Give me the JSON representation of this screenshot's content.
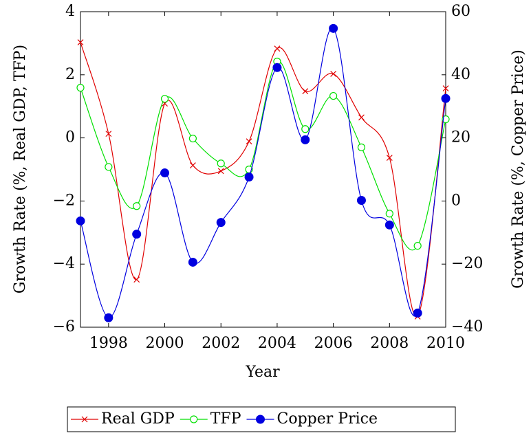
{
  "chart_data": {
    "type": "line",
    "x_label": "Year",
    "y_label": "Growth Rate (%, Real GDP, TFP)",
    "y2_label": "Growth Rate (%, Copper Price)",
    "x": [
      1997,
      1998,
      1999,
      2000,
      2001,
      2002,
      2003,
      2004,
      2005,
      2006,
      2007,
      2008,
      2009,
      2010
    ],
    "xlim": [
      1997,
      2010
    ],
    "xticks": [
      1998,
      2000,
      2002,
      2004,
      2006,
      2008,
      2010
    ],
    "ylim": [
      -6,
      4
    ],
    "yticks": [
      {
        "value": -6,
        "label": "−6"
      },
      {
        "value": -4,
        "label": "−4"
      },
      {
        "value": -2,
        "label": "−2"
      },
      0,
      2,
      4
    ],
    "y2lim": [
      -40,
      60
    ],
    "y2ticks": [
      {
        "value": -40,
        "label": "−40"
      },
      {
        "value": -20,
        "label": "−20"
      },
      0,
      20,
      40,
      60
    ],
    "legend": "bottom",
    "series": [
      {
        "name": "Real GDP",
        "color": "#e00000",
        "marker": "x",
        "values": [
          3.03,
          0.13,
          -4.49,
          1.09,
          -0.87,
          -1.05,
          -0.11,
          2.83,
          1.48,
          2.03,
          0.65,
          -0.63,
          -5.66,
          1.57
        ]
      },
      {
        "name": "TFP",
        "color": "#00e000",
        "marker": "circle",
        "values": [
          1.59,
          -0.92,
          -2.16,
          1.24,
          -0.02,
          -0.81,
          -1.0,
          2.42,
          0.28,
          1.33,
          -0.3,
          -2.4,
          -3.42,
          0.59
        ]
      },
      {
        "name": "Copper Price",
        "color": "#0000e0",
        "marker": "dot",
        "axis": "y2",
        "values": [
          -6.3,
          -37.0,
          -10.5,
          8.9,
          -19.4,
          -6.8,
          7.6,
          42.3,
          19.4,
          54.7,
          0.2,
          -7.6,
          -35.5,
          32.5
        ]
      }
    ]
  }
}
